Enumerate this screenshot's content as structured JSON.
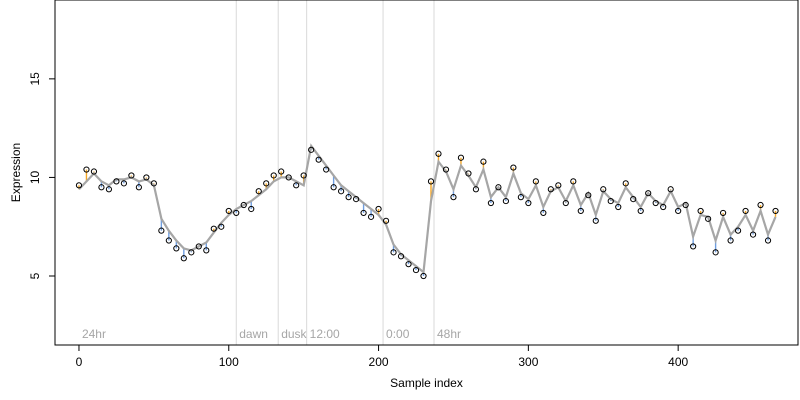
{
  "chart_data": {
    "type": "scatter",
    "title": "",
    "xlabel": "Sample index",
    "ylabel": "Expression",
    "xlim": [
      -16,
      480
    ],
    "ylim": [
      1.5,
      19.0
    ],
    "x_ticks": [
      0,
      100,
      200,
      300,
      400
    ],
    "y_ticks": [
      5,
      10,
      15
    ],
    "grid": false,
    "colors": {
      "up": "#f5a623",
      "down": "#6f9ee0",
      "fit": "#a6a6a6",
      "point_stroke": "#000000",
      "vline": "#d9d9d9"
    },
    "phase_markers": [
      {
        "x": 0,
        "label": "24hr",
        "line": false
      },
      {
        "x": 105,
        "label": "dawn",
        "line": true
      },
      {
        "x": 133,
        "label": "dusk",
        "line": true
      },
      {
        "x": 152,
        "label": "12:00",
        "line": true
      },
      {
        "x": 203,
        "label": "0:00",
        "line": true
      },
      {
        "x": 237,
        "label": "48hr",
        "line": true
      }
    ],
    "series": [
      {
        "x": [
          0,
          5,
          10,
          15,
          20,
          25,
          30,
          35,
          40,
          45,
          50,
          55,
          60,
          65,
          70,
          75,
          80,
          85,
          90,
          95,
          100,
          105,
          110,
          115,
          120,
          125,
          130,
          135,
          140,
          145,
          150,
          155,
          160,
          165,
          170,
          175,
          180,
          185,
          190,
          195,
          200,
          205,
          210,
          215,
          220,
          225,
          230,
          235,
          240,
          245,
          250,
          255,
          260,
          265,
          270,
          275,
          280,
          285,
          290,
          295,
          300,
          305,
          310,
          315,
          320,
          325,
          330,
          335,
          340,
          345,
          350,
          355,
          360,
          365,
          370,
          375,
          380,
          385,
          390,
          395,
          400,
          405,
          410,
          415,
          420,
          425,
          430,
          435,
          440,
          445,
          450,
          455,
          460,
          465
        ],
        "observed": [
          9.6,
          10.4,
          10.3,
          9.5,
          9.4,
          9.8,
          9.7,
          10.1,
          9.5,
          10.0,
          9.7,
          7.3,
          6.8,
          6.4,
          5.9,
          6.2,
          6.5,
          6.3,
          7.4,
          7.5,
          8.3,
          8.2,
          8.6,
          8.4,
          9.3,
          9.7,
          10.1,
          10.3,
          10.0,
          9.6,
          10.1,
          11.4,
          10.9,
          10.4,
          9.5,
          9.3,
          9.0,
          8.9,
          8.2,
          8.0,
          8.4,
          7.8,
          6.2,
          6.0,
          5.6,
          5.3,
          5.0,
          9.8,
          11.2,
          10.4,
          9.0,
          11.0,
          10.2,
          9.4,
          10.8,
          8.7,
          9.5,
          8.8,
          10.5,
          9.0,
          8.7,
          9.8,
          8.2,
          9.4,
          9.6,
          8.7,
          9.8,
          8.3,
          9.1,
          7.8,
          9.4,
          8.8,
          8.5,
          9.7,
          8.9,
          8.3,
          9.2,
          8.7,
          8.5,
          9.4,
          8.3,
          8.6,
          6.5,
          8.3,
          7.9,
          6.2,
          8.2,
          6.8,
          7.3,
          8.3,
          7.1,
          8.6,
          6.8,
          8.3
        ],
        "fitted": [
          9.4,
          9.8,
          10.2,
          9.8,
          9.6,
          9.9,
          9.9,
          10.0,
          9.8,
          9.9,
          9.6,
          7.9,
          7.3,
          6.8,
          6.4,
          6.3,
          6.5,
          6.7,
          7.2,
          7.7,
          8.1,
          8.4,
          8.6,
          8.8,
          9.1,
          9.4,
          9.8,
          10.0,
          10.0,
          9.8,
          9.6,
          11.6,
          11.1,
          10.6,
          10.1,
          9.6,
          9.3,
          9.0,
          8.7,
          8.4,
          8.1,
          7.6,
          6.6,
          6.1,
          5.8,
          5.5,
          5.2,
          8.8,
          10.8,
          10.3,
          9.4,
          10.6,
          10.1,
          9.5,
          10.4,
          9.0,
          9.5,
          9.0,
          10.2,
          9.2,
          8.9,
          9.6,
          8.5,
          9.3,
          9.5,
          8.8,
          9.6,
          8.6,
          9.2,
          8.1,
          9.3,
          8.9,
          8.7,
          9.5,
          9.0,
          8.5,
          9.2,
          8.8,
          8.6,
          9.3,
          8.5,
          8.7,
          7.0,
          8.1,
          8.0,
          6.8,
          8.0,
          7.1,
          7.5,
          8.1,
          7.3,
          8.3,
          7.1,
          8.0
        ]
      }
    ]
  }
}
